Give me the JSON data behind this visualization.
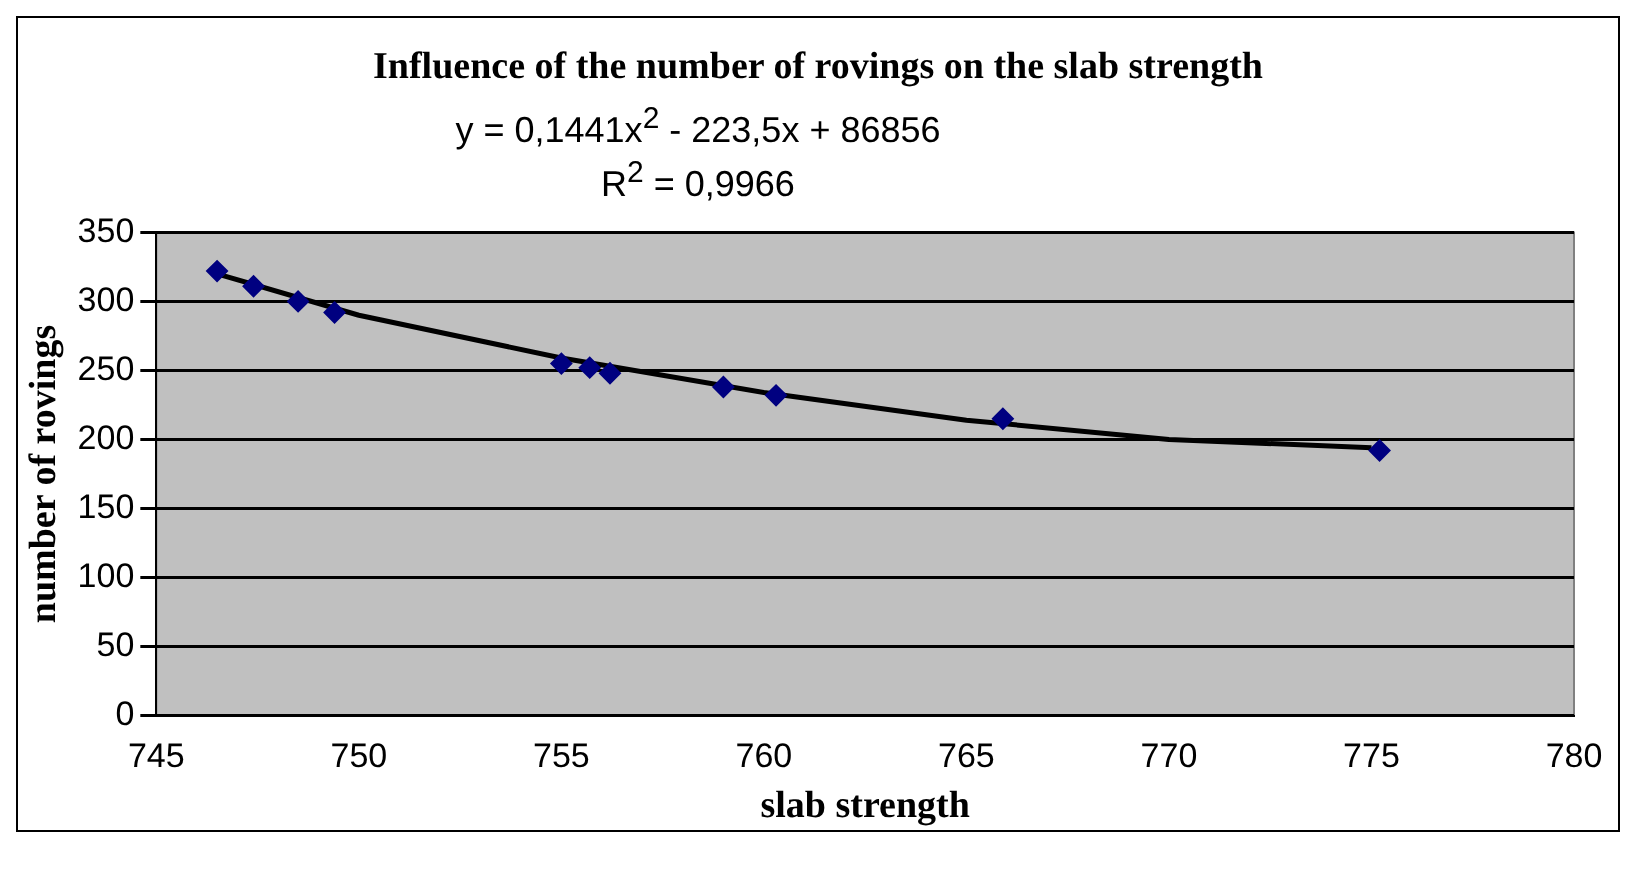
{
  "chart_data": {
    "type": "scatter",
    "title": "Influence of the number of rovings on the slab strength",
    "xlabel": "slab strength",
    "ylabel": "number of rovings",
    "annotations": [
      "y = 0,1441x$^{2}$ - 223,5x + 86856",
      "R$^{2}$ = 0,9966"
    ],
    "series": [
      {
        "color": "#000080",
        "marker": "diamond",
        "x": [
          746.5,
          747.4,
          748.5,
          749.4,
          755.0,
          755.7,
          756.2,
          759.0,
          760.3,
          765.9,
          775.2
        ],
        "values": [
          322,
          311,
          300,
          292,
          255,
          252,
          248,
          238,
          232,
          215,
          192
        ]
      },
      {
        "type": "line",
        "color": "#000000",
        "marker": "none",
        "x": [
          746.5,
          750,
          755,
          760,
          765,
          770,
          775
        ],
        "values": [
          320,
          290,
          259,
          234,
          214,
          200,
          194
        ]
      }
    ],
    "xlim": [
      745,
      780
    ],
    "xticks": [
      745,
      750,
      755,
      760,
      765,
      770,
      775,
      780
    ],
    "ylim": [
      0,
      350
    ],
    "yticks": [
      0,
      50,
      100,
      150,
      200,
      250,
      300,
      350
    ],
    "grid": "y",
    "legend": false
  }
}
